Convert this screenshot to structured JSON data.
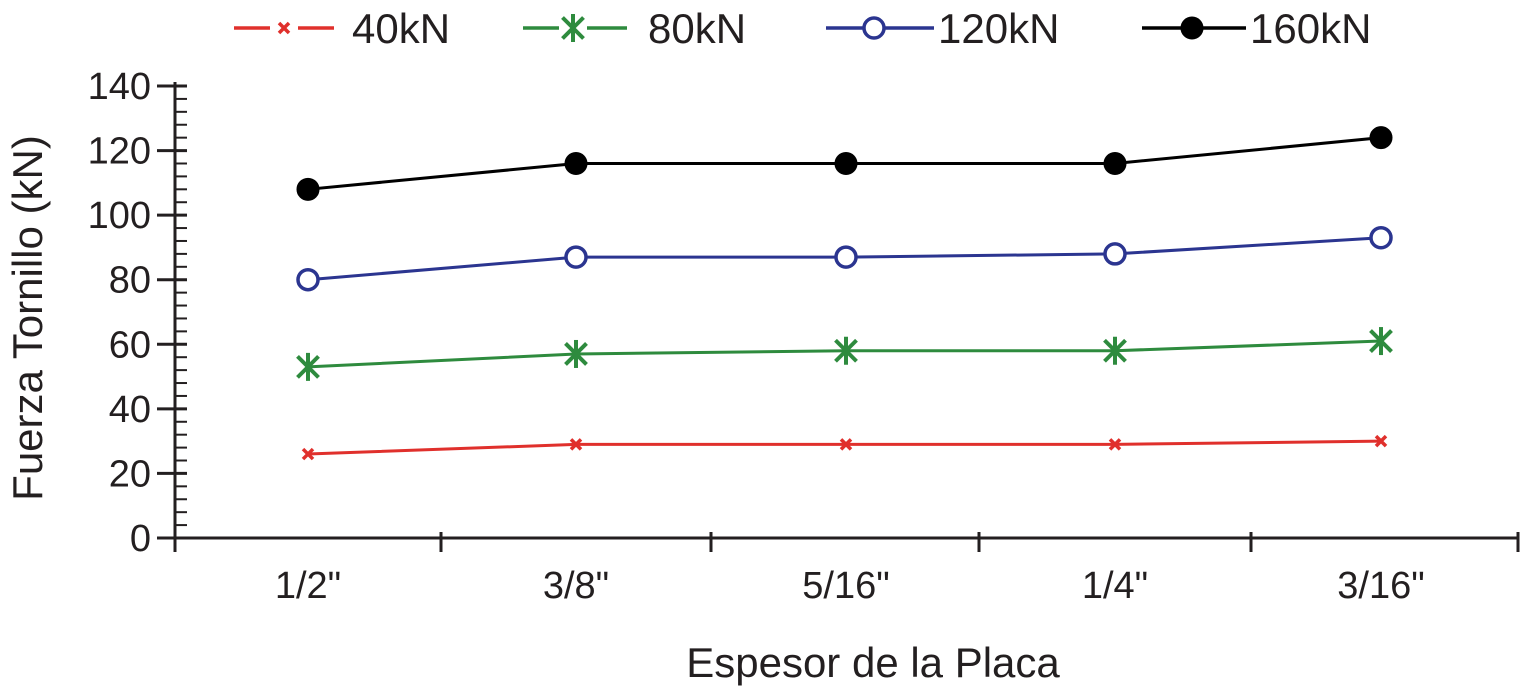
{
  "chart_data": {
    "type": "line",
    "title": "",
    "xlabel": "Espesor de la Placa",
    "ylabel": "Fuerza Tornillo (kN)",
    "categories": [
      "1/2\"",
      "3/8\"",
      "5/16\"",
      "1/4\"",
      "3/16\""
    ],
    "ylim": [
      0,
      140
    ],
    "yticks": [
      0,
      20,
      40,
      60,
      80,
      100,
      120,
      140
    ],
    "grid": false,
    "legend_position": "top",
    "series": [
      {
        "name": "40kN",
        "color": "#e0302c",
        "marker": "x-small",
        "values": [
          26,
          29,
          29,
          29,
          30
        ]
      },
      {
        "name": "80kN",
        "color": "#2e8b3e",
        "marker": "asterisk",
        "values": [
          53,
          57,
          58,
          58,
          61
        ]
      },
      {
        "name": "120kN",
        "color": "#2b3590",
        "marker": "open-circle",
        "values": [
          80,
          87,
          87,
          88,
          93
        ]
      },
      {
        "name": "160kN",
        "color": "#000000",
        "marker": "filled-circle",
        "values": [
          108,
          116,
          116,
          116,
          124
        ]
      }
    ]
  }
}
